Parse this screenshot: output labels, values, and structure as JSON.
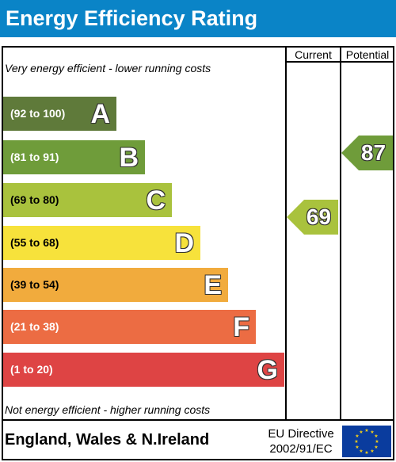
{
  "title": "Energy Efficiency Rating",
  "columns": {
    "current": "Current",
    "potential": "Potential"
  },
  "top_note": "Very energy efficient - lower running costs",
  "bottom_note": "Not energy efficient - higher running costs",
  "bands": [
    {
      "letter": "A",
      "range": "(92 to 100)",
      "color": "#5f7a3a"
    },
    {
      "letter": "B",
      "range": "(81 to 91)",
      "color": "#6f9c3a"
    },
    {
      "letter": "C",
      "range": "(69 to 80)",
      "color": "#a9c23d"
    },
    {
      "letter": "D",
      "range": "(55 to 68)",
      "color": "#f7e23b"
    },
    {
      "letter": "E",
      "range": "(39 to 54)",
      "color": "#f1ab3d"
    },
    {
      "letter": "F",
      "range": "(21 to 38)",
      "color": "#ec6c43"
    },
    {
      "letter": "G",
      "range": "(1 to 20)",
      "color": "#de4444"
    }
  ],
  "current": {
    "value": "69",
    "band": "C",
    "color": "#a9c23d"
  },
  "potential": {
    "value": "87",
    "band": "B",
    "color": "#6f9c3a"
  },
  "footer": {
    "region": "England, Wales & N.Ireland",
    "directive_line1": "EU Directive",
    "directive_line2": "2002/91/EC"
  }
}
